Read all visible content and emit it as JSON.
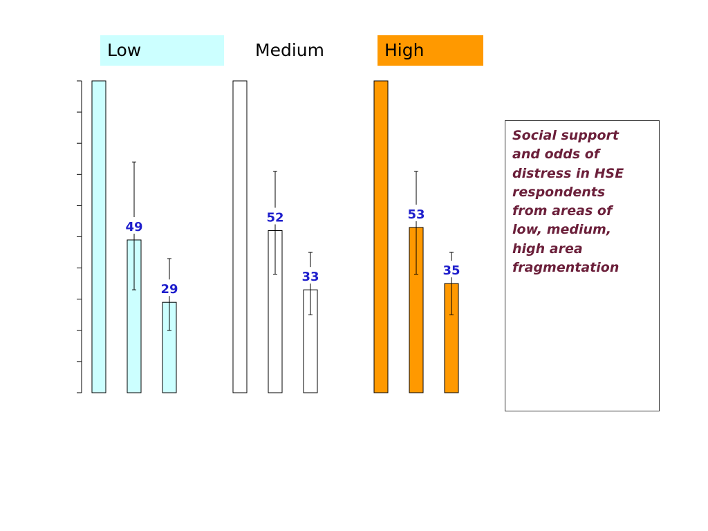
{
  "chart_data": {
    "type": "bar",
    "ylim": [
      0,
      100
    ],
    "y_ticks": [
      0,
      10,
      20,
      30,
      40,
      50,
      60,
      70,
      80,
      90,
      100
    ],
    "groups": [
      {
        "name": "Low",
        "color": "#ccffff",
        "bars": [
          {
            "value": 100,
            "label": ""
          },
          {
            "value": 49,
            "label": "49",
            "err_low": 33,
            "err_high": 74
          },
          {
            "value": 29,
            "label": "29",
            "err_low": 20,
            "err_high": 43
          }
        ]
      },
      {
        "name": "Medium",
        "color": "#ffffff",
        "bars": [
          {
            "value": 100,
            "label": ""
          },
          {
            "value": 52,
            "label": "52",
            "err_low": 38,
            "err_high": 71
          },
          {
            "value": 33,
            "label": "33",
            "err_low": 25,
            "err_high": 45
          }
        ]
      },
      {
        "name": "High",
        "color": "#ff9900",
        "bars": [
          {
            "value": 100,
            "label": ""
          },
          {
            "value": 53,
            "label": "53",
            "err_low": 38,
            "err_high": 71
          },
          {
            "value": 35,
            "label": "35",
            "err_low": 25,
            "err_high": 45
          }
        ]
      }
    ],
    "label_color": "#1f1fcc"
  },
  "legend": {
    "low": "Low",
    "medium": "Medium",
    "high": "High"
  },
  "colors": {
    "low": "#ccffff",
    "medium": "#ffffff",
    "high": "#ff9900"
  },
  "caption": "Social support\nand odds of\ndistress in HSE\nrespondents\nfrom areas of\nlow, medium,\nhigh area\nfragmentation"
}
